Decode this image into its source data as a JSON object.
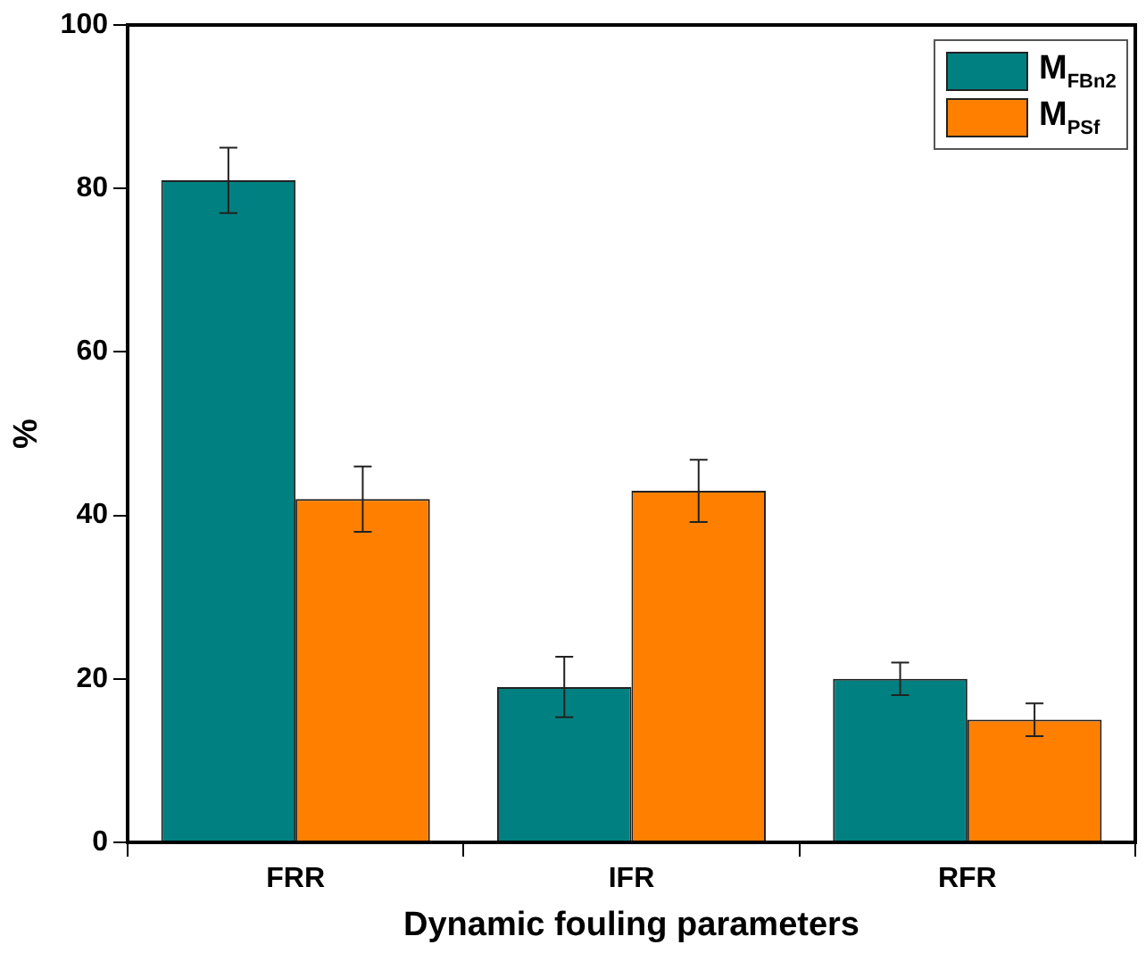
{
  "chart_data": {
    "type": "bar",
    "xlabel": "Dynamic fouling parameters",
    "ylabel": "%",
    "categories": [
      "FRR",
      "IFR",
      "RFR"
    ],
    "series": [
      {
        "name": "M$_{FBn2}$",
        "color": "#008080",
        "values": [
          81,
          19,
          20
        ],
        "errors": [
          4,
          3.7,
          2
        ]
      },
      {
        "name": "M$_{PSf}$",
        "color": "#ff8000",
        "values": [
          42,
          43,
          15
        ],
        "errors": [
          4,
          3.8,
          2
        ]
      }
    ],
    "ylim": [
      0,
      100
    ],
    "yticks": [
      0,
      20,
      40,
      60,
      80,
      100
    ],
    "grid": false,
    "legend": "top right"
  }
}
